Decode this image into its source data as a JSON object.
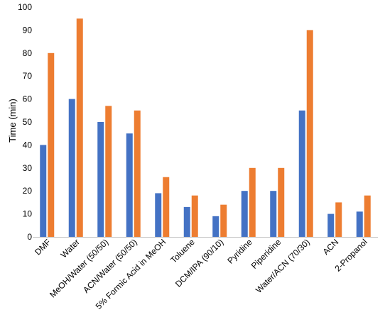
{
  "chart_data": {
    "type": "bar",
    "title": "",
    "xlabel": "",
    "ylabel": "Time (min)",
    "ylim": [
      0,
      100
    ],
    "yticks": [
      0,
      10,
      20,
      30,
      40,
      50,
      60,
      70,
      80,
      90,
      100
    ],
    "grid": false,
    "legend": "none",
    "categories": [
      "DMF",
      "Water",
      "MeOH/Water (50/50)",
      "ACN/Water (50/50)",
      "5% Formic Acid in MeOH",
      "Toluene",
      "DCM/IPA (90/10)",
      "Pyridine",
      "Piperidine",
      "Water/ACN (70/30)",
      "ACN",
      "2-Propanol"
    ],
    "series": [
      {
        "color": "#4472C4",
        "values": [
          40,
          60,
          50,
          45,
          19,
          13,
          9,
          20,
          20,
          55,
          10,
          11
        ]
      },
      {
        "color": "#ED7D31",
        "values": [
          80,
          95,
          57,
          55,
          26,
          18,
          14,
          30,
          30,
          90,
          15,
          18
        ]
      }
    ]
  }
}
